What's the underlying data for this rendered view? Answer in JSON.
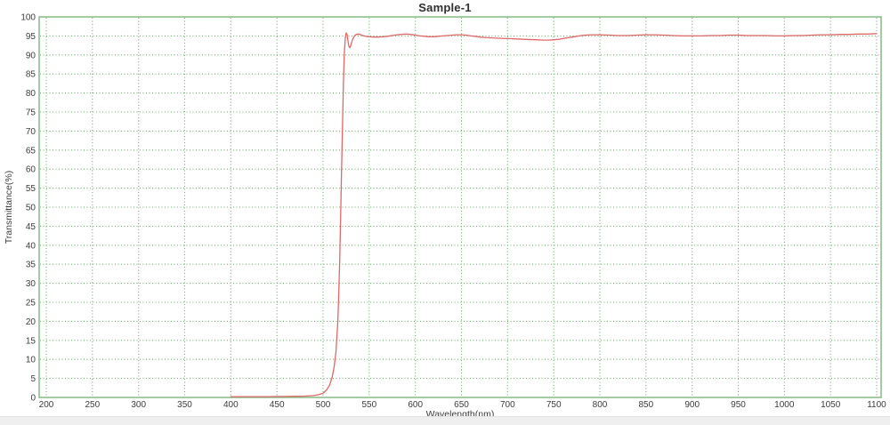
{
  "chart_data": {
    "type": "line",
    "title": "Sample-1",
    "xlabel": "Wavelength(nm)",
    "ylabel": "Transmittance(%)",
    "xlim": [
      200,
      1100
    ],
    "ylim": [
      0,
      100
    ],
    "x_ticks": [
      200,
      250,
      300,
      350,
      400,
      450,
      500,
      550,
      600,
      650,
      700,
      750,
      800,
      850,
      900,
      950,
      1000,
      1050,
      1100
    ],
    "y_ticks": [
      0,
      5,
      10,
      15,
      20,
      25,
      30,
      35,
      40,
      45,
      50,
      55,
      60,
      65,
      70,
      75,
      80,
      85,
      90,
      95,
      100
    ],
    "grid": {
      "style": "dotted",
      "color": "#6fb06f",
      "border_color": "#8cc08c"
    },
    "legend": "none",
    "series": [
      {
        "name": "Sample-1",
        "color": "#df6868",
        "points": [
          [
            400,
            0.2
          ],
          [
            410,
            0.2
          ],
          [
            420,
            0.2
          ],
          [
            430,
            0.2
          ],
          [
            440,
            0.2
          ],
          [
            450,
            0.25
          ],
          [
            460,
            0.25
          ],
          [
            470,
            0.3
          ],
          [
            480,
            0.35
          ],
          [
            490,
            0.5
          ],
          [
            495,
            0.7
          ],
          [
            500,
            1.1
          ],
          [
            504,
            2
          ],
          [
            507,
            3.2
          ],
          [
            510,
            5.5
          ],
          [
            512,
            8
          ],
          [
            514,
            12
          ],
          [
            516,
            20
          ],
          [
            517,
            27
          ],
          [
            518,
            36
          ],
          [
            519,
            47
          ],
          [
            520,
            59
          ],
          [
            521,
            71
          ],
          [
            522,
            82
          ],
          [
            523,
            90
          ],
          [
            524,
            94.3
          ],
          [
            525,
            95.8
          ],
          [
            526,
            95.3
          ],
          [
            527,
            93.6
          ],
          [
            528,
            92.3
          ],
          [
            529,
            91.9
          ],
          [
            530,
            92.4
          ],
          [
            531,
            93.3
          ],
          [
            532,
            94.1
          ],
          [
            534,
            95
          ],
          [
            536,
            95.4
          ],
          [
            538,
            95.5
          ],
          [
            540,
            95.4
          ],
          [
            543,
            95.1
          ],
          [
            546,
            94.9
          ],
          [
            550,
            94.8
          ],
          [
            555,
            94.7
          ],
          [
            560,
            94.7
          ],
          [
            565,
            94.8
          ],
          [
            570,
            94.9
          ],
          [
            575,
            95.1
          ],
          [
            580,
            95.3
          ],
          [
            585,
            95.4
          ],
          [
            590,
            95.5
          ],
          [
            595,
            95.4
          ],
          [
            600,
            95.2
          ],
          [
            605,
            95
          ],
          [
            610,
            94.9
          ],
          [
            615,
            94.8
          ],
          [
            620,
            94.8
          ],
          [
            625,
            94.9
          ],
          [
            630,
            95
          ],
          [
            635,
            95.1
          ],
          [
            640,
            95.2
          ],
          [
            645,
            95.3
          ],
          [
            650,
            95.3
          ],
          [
            655,
            95.2
          ],
          [
            660,
            95
          ],
          [
            665,
            94.9
          ],
          [
            670,
            94.7
          ],
          [
            675,
            94.6
          ],
          [
            680,
            94.5
          ],
          [
            690,
            94.4
          ],
          [
            700,
            94.3
          ],
          [
            710,
            94.2
          ],
          [
            720,
            94.1
          ],
          [
            730,
            94
          ],
          [
            740,
            93.9
          ],
          [
            745,
            93.9
          ],
          [
            750,
            94
          ],
          [
            755,
            94.1
          ],
          [
            760,
            94.3
          ],
          [
            765,
            94.5
          ],
          [
            770,
            94.7
          ],
          [
            775,
            94.9
          ],
          [
            780,
            95.1
          ],
          [
            785,
            95.2
          ],
          [
            790,
            95.3
          ],
          [
            800,
            95.3
          ],
          [
            810,
            95.2
          ],
          [
            820,
            95.1
          ],
          [
            830,
            95.1
          ],
          [
            840,
            95.2
          ],
          [
            850,
            95.3
          ],
          [
            860,
            95.3
          ],
          [
            870,
            95.2
          ],
          [
            880,
            95.1
          ],
          [
            890,
            95
          ],
          [
            900,
            95
          ],
          [
            910,
            95
          ],
          [
            920,
            95.1
          ],
          [
            930,
            95.1
          ],
          [
            940,
            95.2
          ],
          [
            950,
            95.2
          ],
          [
            960,
            95.1
          ],
          [
            970,
            95.1
          ],
          [
            980,
            95.1
          ],
          [
            990,
            95
          ],
          [
            1000,
            95
          ],
          [
            1010,
            95.1
          ],
          [
            1020,
            95.1
          ],
          [
            1030,
            95.2
          ],
          [
            1040,
            95.3
          ],
          [
            1050,
            95.3
          ],
          [
            1060,
            95.4
          ],
          [
            1070,
            95.4
          ],
          [
            1080,
            95.5
          ],
          [
            1090,
            95.5
          ],
          [
            1100,
            95.6
          ]
        ]
      }
    ]
  },
  "colors": {
    "background": "#ffffff",
    "text": "#3c3c3c",
    "bottom_strip": "#efefef"
  }
}
